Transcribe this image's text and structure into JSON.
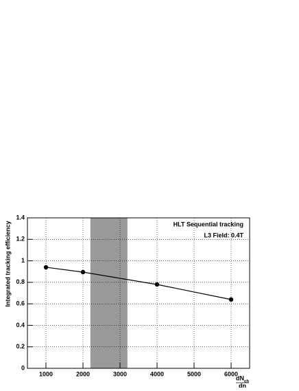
{
  "chart_data": {
    "type": "line",
    "title": "HLT Sequential tracking",
    "subtitle": "L3 Field: 0.4T",
    "y_label": "Integrated tracking efficiency",
    "x_label": {
      "numerator": "dN",
      "subscript": "ch",
      "denominator": "dη"
    },
    "x": [
      1000,
      2000,
      4000,
      6000
    ],
    "series": [
      {
        "name": "efficiency",
        "color": "#000000",
        "values": [
          0.94,
          0.895,
          0.78,
          0.64
        ]
      }
    ],
    "band": {
      "x": [
        2200,
        3200
      ],
      "color": "#999999"
    },
    "xlim": [
      500,
      6500
    ],
    "xticks": [
      1000,
      2000,
      3000,
      4000,
      5000,
      6000
    ],
    "ylim": [
      0,
      1.4
    ],
    "yticks": [
      0,
      0.2,
      0.4,
      0.6,
      0.8,
      1,
      1.2,
      1.4
    ],
    "grid": true
  }
}
